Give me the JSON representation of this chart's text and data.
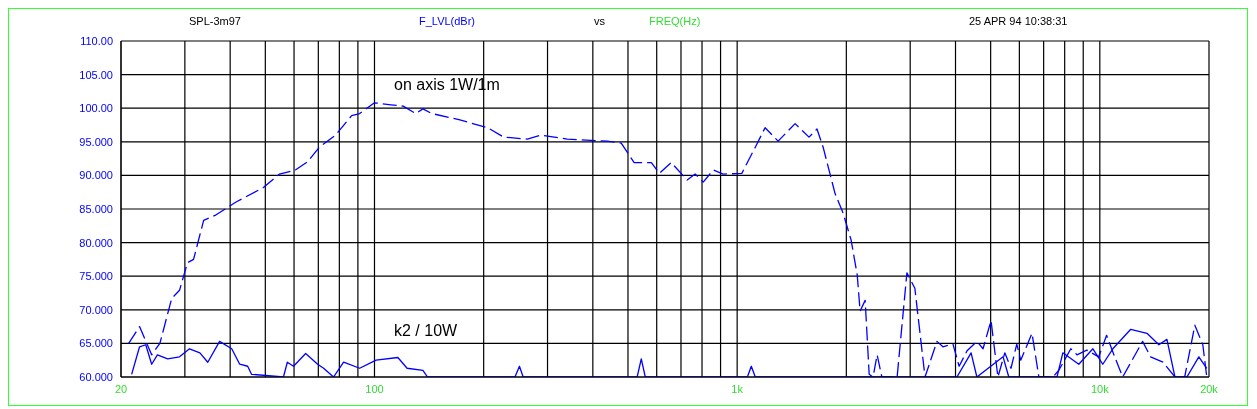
{
  "chart_data": {
    "type": "line",
    "title": "SPL-3m97",
    "ylabel": "F_LVL(dBr)",
    "xlabel": "FREQ(Hz)",
    "annotations": [
      "vs",
      "25 APR 94 10:38:31",
      "on axis 1W/1m",
      "k2 / 10W"
    ],
    "log": "x",
    "grid": true,
    "marker": "none",
    "xlim": [
      20,
      20000
    ],
    "xticks": [
      20,
      {
        "value": 30,
        "label": null
      },
      {
        "value": 40,
        "label": null
      },
      {
        "value": 50,
        "label": null
      },
      {
        "value": 60,
        "label": null
      },
      {
        "value": 70,
        "label": null
      },
      {
        "value": 80,
        "label": null
      },
      {
        "value": 90,
        "label": null
      },
      100,
      {
        "value": 200,
        "label": null
      },
      {
        "value": 300,
        "label": null
      },
      {
        "value": 400,
        "label": null
      },
      {
        "value": 500,
        "label": null
      },
      {
        "value": 600,
        "label": null
      },
      {
        "value": 700,
        "label": null
      },
      {
        "value": 800,
        "label": null
      },
      {
        "value": 900,
        "label": null
      },
      {
        "value": 1000,
        "label": "1k"
      },
      {
        "value": 2000,
        "label": null
      },
      {
        "value": 3000,
        "label": null
      },
      {
        "value": 4000,
        "label": null
      },
      {
        "value": 5000,
        "label": null
      },
      {
        "value": 6000,
        "label": null
      },
      {
        "value": 7000,
        "label": null
      },
      {
        "value": 8000,
        "label": null
      },
      {
        "value": 9000,
        "label": null
      },
      {
        "value": 10000,
        "label": "10k"
      },
      {
        "value": 20000,
        "label": "20k"
      }
    ],
    "ylim": [
      60,
      110
    ],
    "yticks": [
      {
        "value": 60,
        "label": "60.000"
      },
      {
        "value": 65,
        "label": "65.000"
      },
      {
        "value": 70,
        "label": "70.000"
      },
      {
        "value": 75,
        "label": "75.000"
      },
      {
        "value": 80,
        "label": "80.000"
      },
      {
        "value": 85,
        "label": "85.000"
      },
      {
        "value": 90,
        "label": "90.000"
      },
      {
        "value": 95,
        "label": "95.000"
      },
      {
        "value": 100,
        "label": "100.00"
      },
      {
        "value": 105,
        "label": "105.00"
      },
      {
        "value": 110,
        "label": "110.00"
      }
    ],
    "series": [
      {
        "color": "#0000ff",
        "line_style": "dashed",
        "x": [
          21,
          22.5,
          24.3,
          25.6,
          27.6,
          29,
          30.5,
          31.7,
          33.8,
          36.5,
          41.4,
          49.4,
          54.7,
          60.5,
          65.3,
          70.5,
          78.1,
          86.5,
          91,
          100,
          111,
          120,
          130,
          136,
          144,
          171,
          205,
          227,
          264,
          288,
          340,
          438,
          479,
          520,
          580,
          610,
          658,
          728,
          766,
          806,
          859,
          915,
          1030,
          1122,
          1194,
          1297,
          1445,
          1578,
          1660,
          1726,
          1862,
          1959,
          2061,
          2143,
          2183,
          2254,
          2312,
          2370,
          2432,
          2506,
          2761,
          2938,
          3090,
          3296,
          3556,
          3693,
          3936,
          4093,
          4305,
          4581,
          4764,
          5012,
          5236,
          5470,
          5689,
          5902,
          6053,
          6501,
          6792,
          7430,
          7709,
          8318,
          8650,
          9204,
          9931,
          10440,
          10990,
          11560,
          13120,
          13800,
          14930,
          16110,
          17140,
          18280,
          19230,
          19720
        ],
        "values": [
          65,
          67.5,
          63.3,
          65,
          71.7,
          72.9,
          77,
          77.5,
          83.3,
          84.1,
          86,
          88.2,
          90.2,
          90.8,
          92,
          94.2,
          96,
          98.9,
          99.2,
          100.8,
          100.5,
          100.3,
          99.2,
          99.9,
          99.2,
          98.3,
          97.1,
          95.7,
          95.4,
          96,
          95.4,
          95.1,
          94.8,
          91.9,
          91.9,
          90.3,
          91.9,
          89.3,
          90.2,
          89,
          90.8,
          90.2,
          90.3,
          94.2,
          97.1,
          95.1,
          97.7,
          95.7,
          96.9,
          94.2,
          87.3,
          84.4,
          80.4,
          75.2,
          69.8,
          71.4,
          60.4,
          60,
          63.3,
          60,
          60,
          75.5,
          73.2,
          60,
          65.3,
          64.5,
          64.9,
          61.6,
          63.9,
          65.3,
          64.2,
          68.4,
          60,
          63.6,
          61.3,
          64.9,
          62.5,
          66.5,
          60,
          60,
          61,
          64.2,
          63.3,
          64,
          63,
          66.2,
          63,
          60,
          65.3,
          63,
          62.2,
          60,
          60,
          67.7,
          64.8,
          60
        ]
      },
      {
        "color": "#0000ff",
        "line_style": "solid",
        "x": [
          21.4,
          22.5,
          23.4,
          24.3,
          25.2,
          26.9,
          29,
          30.9,
          33,
          34.7,
          37.4,
          40.4,
          42.5,
          44.7,
          45.8,
          56.1,
          57.5,
          59.8,
          64.6,
          69.7,
          72.4,
          77.1,
          82.2,
          91,
          101,
          116,
          123,
          136,
          140,
          244,
          251,
          257,
          530,
          544,
          558,
          1067,
          1094,
          1122,
          4036,
          4416,
          4581,
          5410,
          5610,
          7620,
          7907,
          8750,
          9570,
          10190,
          10860,
          12170,
          13490,
          14550,
          15310,
          16110,
          17380,
          18750,
          19720
        ],
        "values": [
          60.4,
          64.5,
          64.8,
          61.9,
          63.3,
          62.7,
          63,
          64.2,
          63.6,
          62.2,
          65.3,
          64.2,
          61.9,
          61.6,
          60.4,
          60,
          62.2,
          61.6,
          63.5,
          61.9,
          61.3,
          60,
          62.2,
          61.3,
          62.5,
          62.9,
          61.3,
          61,
          60,
          60,
          61.6,
          60,
          60,
          62.7,
          60,
          60,
          61.6,
          60,
          60,
          63.6,
          60,
          63,
          60,
          60,
          63.6,
          61.9,
          64.2,
          61.9,
          64.2,
          67.1,
          66.5,
          64.8,
          65.6,
          60,
          60,
          63,
          61.3
        ]
      }
    ]
  }
}
